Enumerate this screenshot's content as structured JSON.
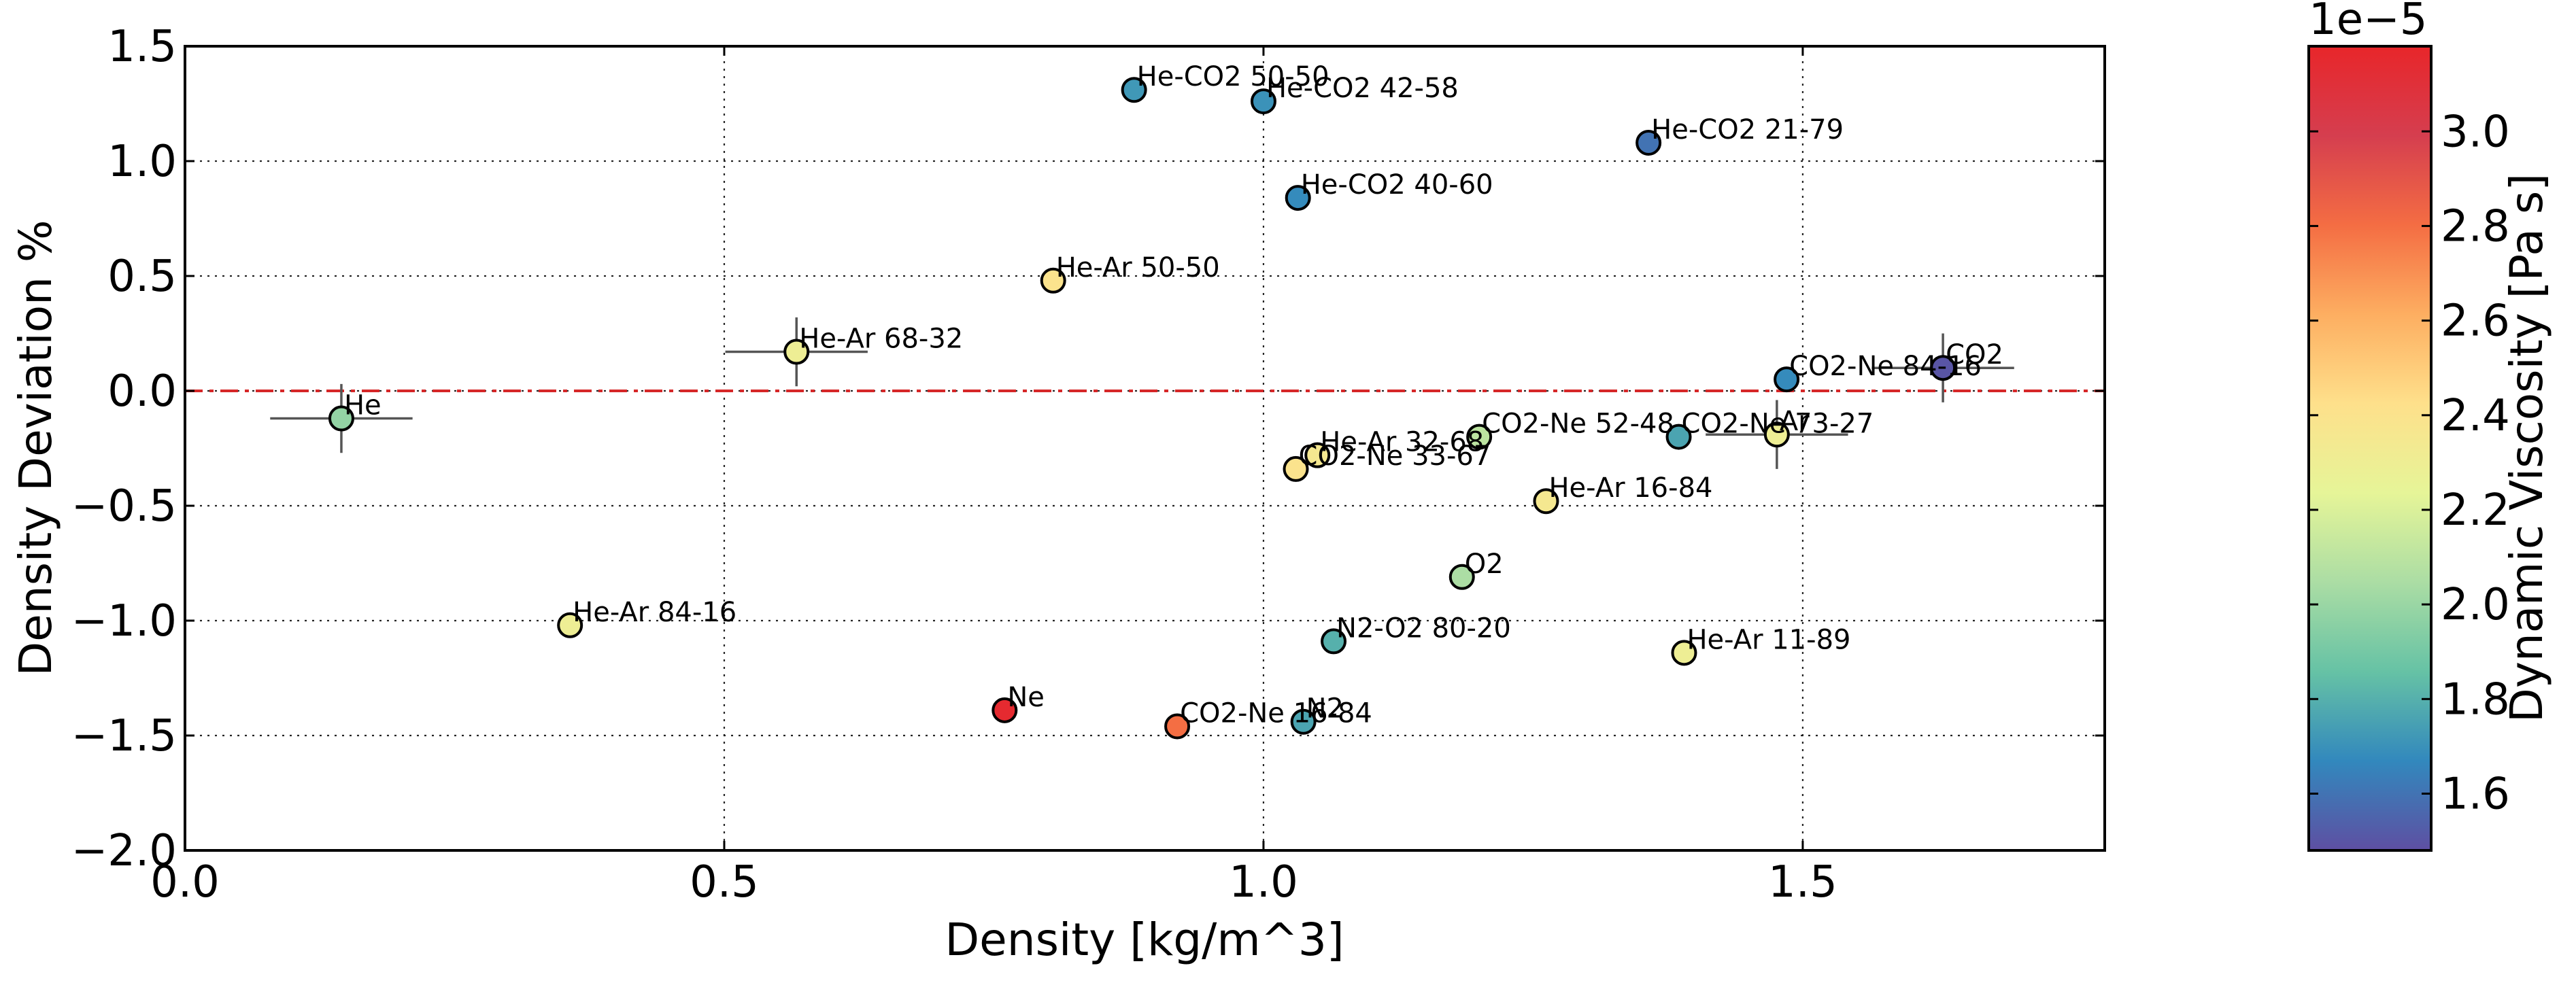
{
  "chart_data": {
    "type": "scatter",
    "title": "",
    "xlabel": "Density [kg/m^3]",
    "ylabel": "Density  Deviation %",
    "xlim": [
      0.0,
      1.78
    ],
    "ylim": [
      -2.0,
      1.5
    ],
    "xticks": [
      0.0,
      0.5,
      1.0,
      1.5
    ],
    "xtick_labels": [
      "0.0",
      "0.5",
      "1.0",
      "1.5"
    ],
    "yticks": [
      -2.0,
      -1.5,
      -1.0,
      -0.5,
      0.0,
      0.5,
      1.0,
      1.5
    ],
    "ytick_labels": [
      "−2.0",
      "−1.5",
      "−1.0",
      "−0.5",
      "0.0",
      "0.5",
      "1.0",
      "1.5"
    ],
    "grid": true,
    "reference_line": {
      "y": 0.0,
      "color": "#d62728",
      "style": "dash-dot"
    },
    "colorbar": {
      "label": "Dynamic Viscosity [Pa s]",
      "multiplier": "1e−5",
      "min": 1.48,
      "max": 3.18,
      "ticks": [
        1.6,
        1.8,
        2.0,
        2.2,
        2.4,
        2.6,
        2.8,
        3.0
      ],
      "tick_labels": [
        "1.6",
        "1.8",
        "2.0",
        "2.2",
        "2.4",
        "2.6",
        "2.8",
        "3.0"
      ],
      "colormap_stops": [
        "#5e4fa2",
        "#3288bd",
        "#66c2a5",
        "#abdda4",
        "#e6f598",
        "#fee08b",
        "#fdae61",
        "#f46d43",
        "#d53e4f",
        "#e8262a"
      ]
    },
    "points": [
      {
        "label": "He",
        "x": 0.145,
        "y": -0.12,
        "viscosity": 1.98,
        "xerr": 0.03,
        "yerr": 0.15
      },
      {
        "label": "He-Ar 68-32",
        "x": 0.567,
        "y": 0.17,
        "viscosity": 2.3,
        "xerr": 0.03,
        "yerr": 0.15
      },
      {
        "label": "He-Ar 50-50",
        "x": 0.805,
        "y": 0.48,
        "viscosity": 2.4,
        "xerr": 0,
        "yerr": 0
      },
      {
        "label": "He-Ar 84-16",
        "x": 0.357,
        "y": -1.02,
        "viscosity": 2.3,
        "xerr": 0,
        "yerr": 0
      },
      {
        "label": "Ne",
        "x": 0.76,
        "y": -1.39,
        "viscosity": 3.15,
        "xerr": 0,
        "yerr": 0
      },
      {
        "label": "He-CO2 50-50",
        "x": 0.88,
        "y": 1.31,
        "viscosity": 1.72,
        "xerr": 0,
        "yerr": 0
      },
      {
        "label": "He-CO2 42-58",
        "x": 1.0,
        "y": 1.26,
        "viscosity": 1.7,
        "xerr": 0,
        "yerr": 0
      },
      {
        "label": "He-CO2 21-79",
        "x": 1.357,
        "y": 1.08,
        "viscosity": 1.6,
        "xerr": 0,
        "yerr": 0
      },
      {
        "label": "He-CO2 40-60",
        "x": 1.032,
        "y": 0.84,
        "viscosity": 1.68,
        "xerr": 0,
        "yerr": 0
      },
      {
        "label": "CO2-Ne 16-84",
        "x": 0.92,
        "y": -1.46,
        "viscosity": 2.8,
        "xerr": 0,
        "yerr": 0
      },
      {
        "label": "N2",
        "x": 1.037,
        "y": -1.44,
        "viscosity": 1.76,
        "xerr": 0,
        "yerr": 0
      },
      {
        "label": "N2-O2 80-20",
        "x": 1.065,
        "y": -1.09,
        "viscosity": 1.8,
        "xerr": 0,
        "yerr": 0
      },
      {
        "label": "He-Ar 32-68",
        "x": 1.05,
        "y": -0.28,
        "viscosity": 2.35,
        "xerr": 0,
        "yerr": 0
      },
      {
        "label": "CO2-Ne 33-67",
        "x": 1.03,
        "y": -0.34,
        "viscosity": 2.4,
        "xerr": 0,
        "yerr": 0
      },
      {
        "label": "CO2-Ne 52-48",
        "x": 1.2,
        "y": -0.2,
        "viscosity": 2.1,
        "xerr": 0,
        "yerr": 0
      },
      {
        "label": "He-Ar 16-84",
        "x": 1.262,
        "y": -0.48,
        "viscosity": 2.35,
        "xerr": 0,
        "yerr": 0
      },
      {
        "label": "O2",
        "x": 1.184,
        "y": -0.81,
        "viscosity": 2.05,
        "xerr": 0,
        "yerr": 0
      },
      {
        "label": "He-Ar 11-89",
        "x": 1.39,
        "y": -1.14,
        "viscosity": 2.3,
        "xerr": 0,
        "yerr": 0
      },
      {
        "label": "CO2-Ne 73-27",
        "x": 1.385,
        "y": -0.2,
        "viscosity": 1.76,
        "xerr": 0,
        "yerr": 0
      },
      {
        "label": "Ar",
        "x": 1.476,
        "y": -0.19,
        "viscosity": 2.3,
        "xerr": 0.03,
        "yerr": 0.15
      },
      {
        "label": "CO2-Ne 84-16",
        "x": 1.485,
        "y": 0.05,
        "viscosity": 1.68,
        "xerr": 0,
        "yerr": 0
      },
      {
        "label": "CO2",
        "x": 1.63,
        "y": 0.1,
        "viscosity": 1.5,
        "xerr": 0.03,
        "yerr": 0.15
      }
    ]
  }
}
